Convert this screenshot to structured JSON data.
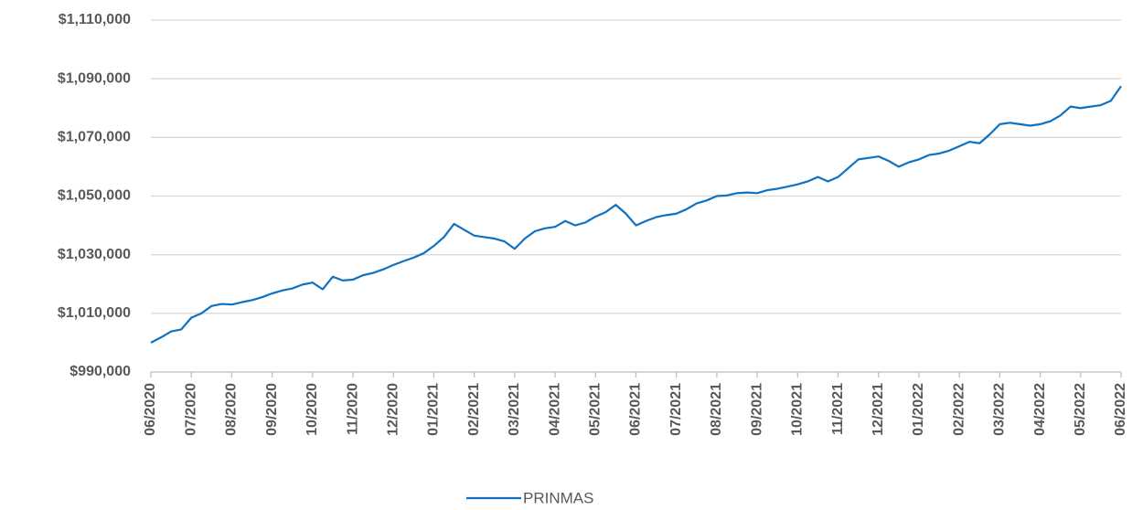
{
  "chart_data": {
    "type": "line",
    "categories": [
      "06/2020",
      null,
      null,
      null,
      "07/2020",
      null,
      null,
      null,
      "08/2020",
      null,
      null,
      null,
      "09/2020",
      null,
      null,
      null,
      "10/2020",
      null,
      null,
      null,
      "11/2020",
      null,
      null,
      null,
      "12/2020",
      null,
      null,
      null,
      "01/2021",
      null,
      null,
      null,
      "02/2021",
      null,
      null,
      null,
      "03/2021",
      null,
      null,
      null,
      "04/2021",
      null,
      null,
      null,
      "05/2021",
      null,
      null,
      null,
      "06/2021",
      null,
      null,
      null,
      "07/2021",
      null,
      null,
      null,
      "08/2021",
      null,
      null,
      null,
      "09/2021",
      null,
      null,
      null,
      "10/2021",
      null,
      null,
      null,
      "11/2021",
      null,
      null,
      null,
      "12/2021",
      null,
      null,
      null,
      "01/2022",
      null,
      null,
      null,
      "02/2022",
      null,
      null,
      null,
      "03/2022",
      null,
      null,
      null,
      "04/2022",
      null,
      null,
      null,
      "05/2022",
      null,
      null,
      null,
      "06/2022"
    ],
    "series": [
      {
        "name": "PRINMAS",
        "color": "#0f71bf",
        "values": [
          1000000,
          1001800,
          1003800,
          1004500,
          1008500,
          1010000,
          1012500,
          1013200,
          1013000,
          1013800,
          1014500,
          1015500,
          1016800,
          1017800,
          1018500,
          1019800,
          1020500,
          1018200,
          1022500,
          1021200,
          1021500,
          1023000,
          1023800,
          1025000,
          1026500,
          1027800,
          1029000,
          1030500,
          1033000,
          1036000,
          1040500,
          1038500,
          1036500,
          1036000,
          1035500,
          1034500,
          1032000,
          1035500,
          1038000,
          1039000,
          1039500,
          1041500,
          1040000,
          1041000,
          1043000,
          1044500,
          1047000,
          1044000,
          1040000,
          1041500,
          1042800,
          1043500,
          1044000,
          1045500,
          1047500,
          1048500,
          1050000,
          1050200,
          1051000,
          1051200,
          1051000,
          1052000,
          1052500,
          1053200,
          1054000,
          1055000,
          1056500,
          1055000,
          1056500,
          1059500,
          1062500,
          1063000,
          1063500,
          1062000,
          1060000,
          1061500,
          1062500,
          1064000,
          1064500,
          1065500,
          1067000,
          1068500,
          1068000,
          1071000,
          1074500,
          1075000,
          1074500,
          1074000,
          1074500,
          1075500,
          1077500,
          1080500,
          1080000,
          1080500,
          1081000,
          1082500,
          1087500
        ]
      }
    ],
    "ylim": [
      990000,
      1110000
    ],
    "yticks": [
      {
        "value": 990000,
        "label": "$990,000"
      },
      {
        "value": 1010000,
        "label": "$1,010,000"
      },
      {
        "value": 1030000,
        "label": "$1,030,000"
      },
      {
        "value": 1050000,
        "label": "$1,050,000"
      },
      {
        "value": 1070000,
        "label": "$1,070,000"
      },
      {
        "value": 1090000,
        "label": "$1,090,000"
      },
      {
        "value": 1110000,
        "label": "$1,110,000"
      }
    ],
    "grid": true,
    "legend": "bottom"
  }
}
